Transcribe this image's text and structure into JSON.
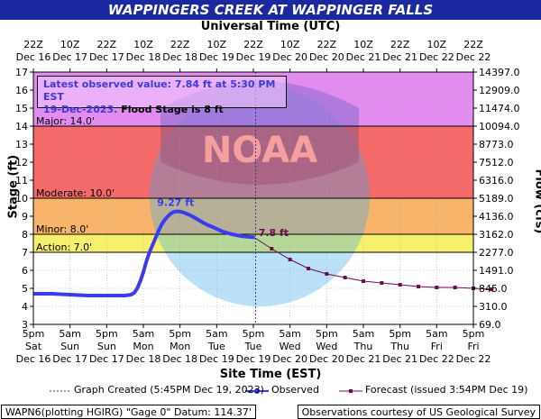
{
  "header": {
    "title": "WAPPINGERS CREEK AT WAPPINGER FALLS",
    "utc_axis_title": "Universal Time (UTC)",
    "est_axis_title": "Site Time (EST)"
  },
  "info_box": {
    "line1": "Latest observed value: 7.84 ft at 5:30 PM EST",
    "line2_date": "19-Dec-2023.",
    "line2_flood": "Flood Stage is 8 ft"
  },
  "legend": {
    "created": "Graph Created (5:45PM Dec 19, 2023)",
    "observed": "Observed",
    "forecast": "Forecast (issued 3:54PM Dec 19)"
  },
  "footer": {
    "left": "WAPN6(plotting HGIRG) \"Gage 0\" Datum: 114.37'",
    "right": "Observations courtesy of US Geological Survey"
  },
  "colors": {
    "title_bar": "#1c28a0",
    "major": "#e38cf0",
    "moderate": "#f46a6a",
    "minor": "#f8b56a",
    "action": "#f7f06e",
    "normal": "#ffffff",
    "observed": "#3b3bf0",
    "forecast": "#6b0d50"
  },
  "chart_data": {
    "type": "line",
    "title": "WAPPINGERS CREEK AT WAPPINGER FALLS",
    "xlabel": "Site Time (EST)",
    "ylabel": "Stage (ft)",
    "y2label": "Flow (cfs)",
    "ylim": [
      3,
      17
    ],
    "xlim": [
      "Dec 16 5pm",
      "Dec 22 5pm"
    ],
    "grid": true,
    "stages": [
      {
        "label": "Major: 14.0'",
        "value": 14.0
      },
      {
        "label": "Moderate: 10.0'",
        "value": 10.0
      },
      {
        "label": "Minor: 8.0'",
        "value": 8.0
      },
      {
        "label": "Action: 7.0'",
        "value": 7.0
      }
    ],
    "y_ticks": [
      "3",
      "4",
      "5",
      "6",
      "7",
      "8",
      "9",
      "10",
      "11",
      "12",
      "13",
      "14",
      "15",
      "16",
      "17"
    ],
    "y2_ticks": [
      "69.0",
      "310.0",
      "845.0",
      "1491.0",
      "2277.0",
      "3162.0",
      "4136.0",
      "5189.0",
      "6316.0",
      "7512.0",
      "8773.0",
      "10094.0",
      "11474.0",
      "12909.0",
      "14397.0"
    ],
    "top_ticks": [
      {
        "time": "22Z",
        "date": "Dec 16"
      },
      {
        "time": "10Z",
        "date": "Dec 17"
      },
      {
        "time": "22Z",
        "date": "Dec 17"
      },
      {
        "time": "10Z",
        "date": "Dec 18"
      },
      {
        "time": "22Z",
        "date": "Dec 18"
      },
      {
        "time": "10Z",
        "date": "Dec 19"
      },
      {
        "time": "22Z",
        "date": "Dec 19"
      },
      {
        "time": "10Z",
        "date": "Dec 20"
      },
      {
        "time": "22Z",
        "date": "Dec 20"
      },
      {
        "time": "10Z",
        "date": "Dec 21"
      },
      {
        "time": "22Z",
        "date": "Dec 21"
      },
      {
        "time": "10Z",
        "date": "Dec 22"
      },
      {
        "time": "22Z",
        "date": "Dec 22"
      }
    ],
    "bottom_ticks": [
      {
        "time": "5pm",
        "day": "Sat",
        "date": "Dec 16"
      },
      {
        "time": "5am",
        "day": "Sun",
        "date": "Dec 17"
      },
      {
        "time": "5pm",
        "day": "Sun",
        "date": "Dec 17"
      },
      {
        "time": "5am",
        "day": "Mon",
        "date": "Dec 18"
      },
      {
        "time": "5pm",
        "day": "Mon",
        "date": "Dec 18"
      },
      {
        "time": "5am",
        "day": "Tue",
        "date": "Dec 19"
      },
      {
        "time": "5pm",
        "day": "Tue",
        "date": "Dec 19"
      },
      {
        "time": "5am",
        "day": "Wed",
        "date": "Dec 20"
      },
      {
        "time": "5pm",
        "day": "Wed",
        "date": "Dec 20"
      },
      {
        "time": "5am",
        "day": "Thu",
        "date": "Dec 21"
      },
      {
        "time": "5pm",
        "day": "Thu",
        "date": "Dec 21"
      },
      {
        "time": "5am",
        "day": "Fri",
        "date": "Dec 22"
      },
      {
        "time": "5pm",
        "day": "Fri",
        "date": "Dec 22"
      }
    ],
    "graph_created": {
      "hours": 72.75,
      "label": "5:45PM Dec 19, 2023"
    },
    "observed": {
      "hours": [
        0,
        6,
        12,
        18,
        24,
        30,
        32,
        33,
        34,
        35,
        36,
        37,
        38,
        39,
        40,
        41,
        42,
        43,
        44,
        45,
        46,
        47,
        48,
        49,
        50,
        51,
        52,
        53,
        54,
        55,
        56,
        57,
        58,
        59,
        60,
        61,
        62,
        63,
        64,
        65,
        66,
        67,
        68,
        69,
        70,
        71,
        72,
        72.5
      ],
      "values": [
        4.7,
        4.7,
        4.65,
        4.6,
        4.6,
        4.6,
        4.65,
        4.75,
        5.0,
        5.4,
        5.9,
        6.5,
        7.0,
        7.4,
        7.8,
        8.2,
        8.55,
        8.8,
        9.0,
        9.15,
        9.25,
        9.27,
        9.26,
        9.22,
        9.15,
        9.08,
        9.0,
        8.9,
        8.8,
        8.7,
        8.6,
        8.52,
        8.45,
        8.38,
        8.3,
        8.22,
        8.15,
        8.1,
        8.05,
        8.0,
        7.97,
        7.93,
        7.9,
        7.88,
        7.86,
        7.85,
        7.84,
        7.84
      ]
    },
    "forecast": {
      "hours": [
        72.5,
        78,
        84,
        90,
        96,
        102,
        108,
        114,
        120,
        126,
        132,
        138,
        144,
        150
      ],
      "values": [
        7.8,
        7.2,
        6.6,
        6.1,
        5.8,
        5.6,
        5.4,
        5.3,
        5.2,
        5.1,
        5.05,
        5.05,
        5.0,
        4.95
      ]
    },
    "annotations": [
      {
        "text": "9.27 ft",
        "hours": 47,
        "value": 9.27
      },
      {
        "text": "7.8 ft",
        "hours": 72.5,
        "value": 7.8
      }
    ]
  }
}
